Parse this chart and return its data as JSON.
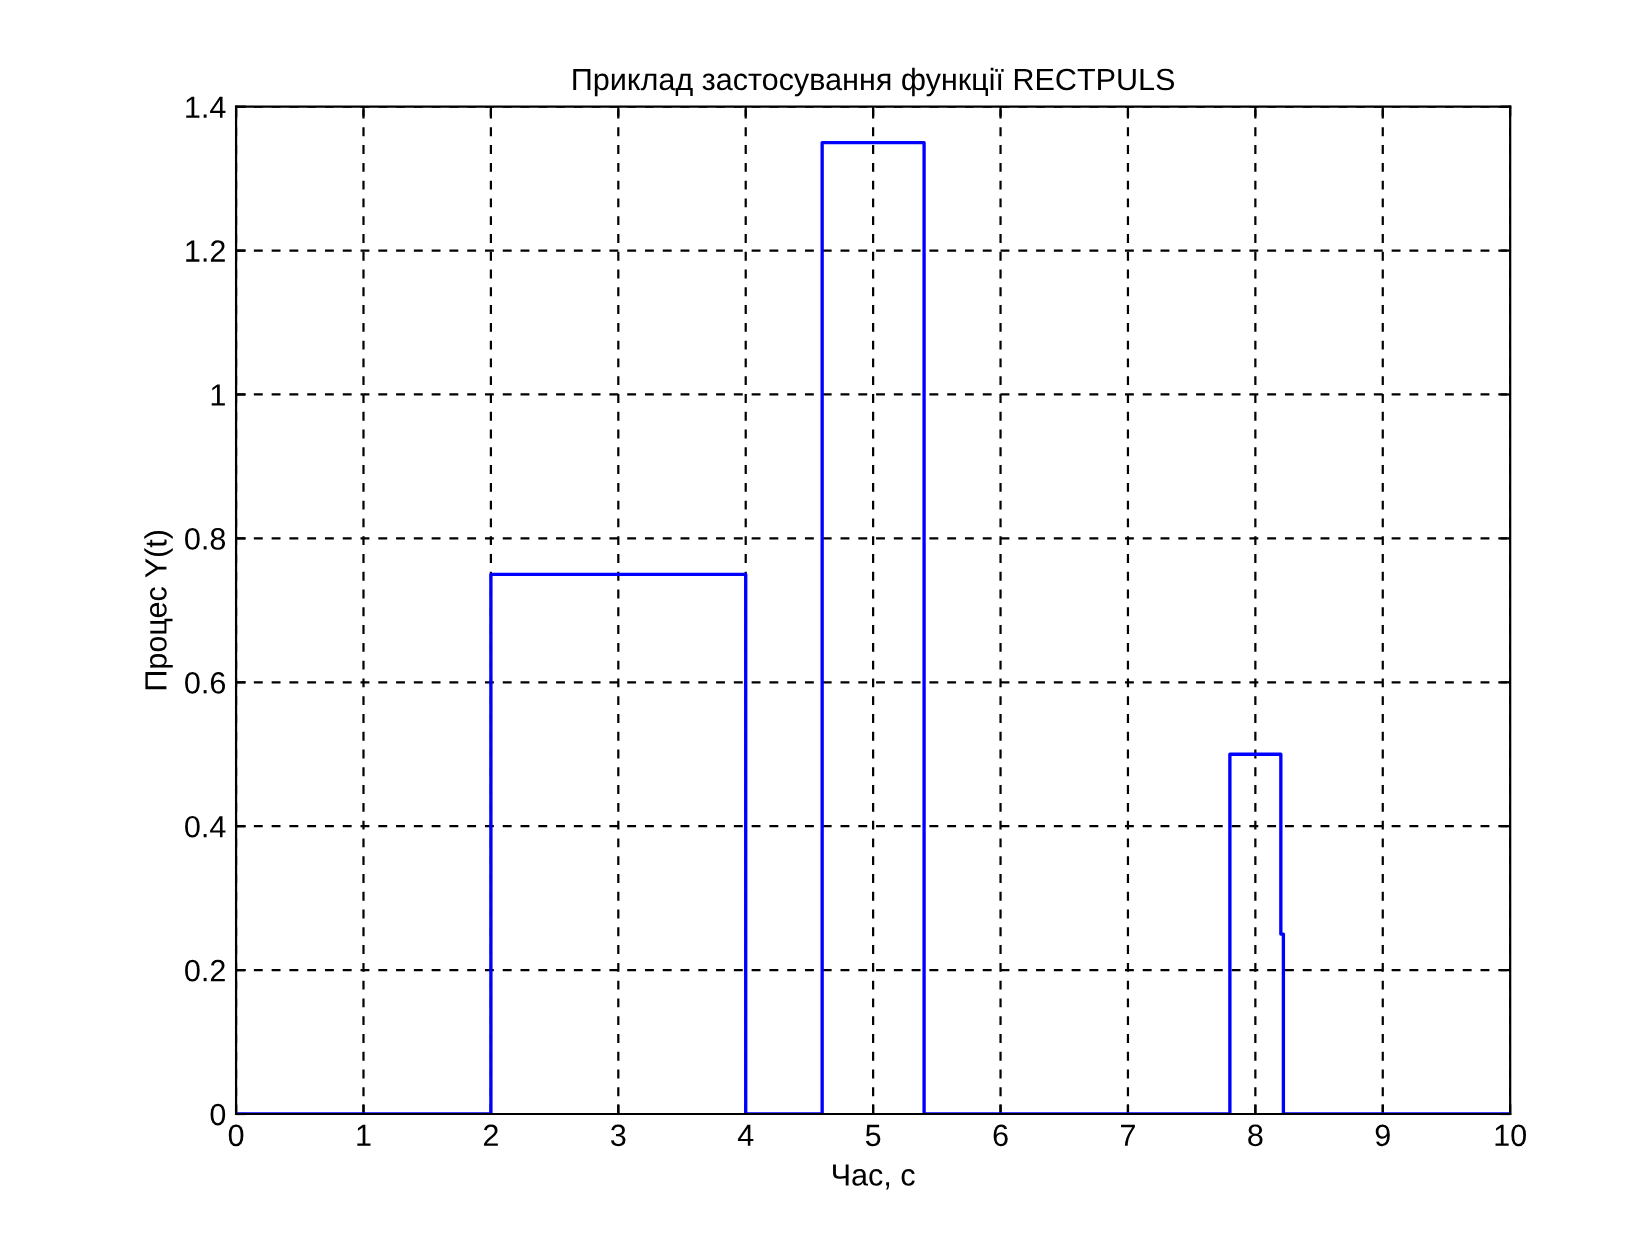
{
  "chart_data": {
    "type": "line",
    "title": "Приклад застосування функції RECTPULS",
    "xlabel": "Час, с",
    "ylabel": "Процес Y(t)",
    "series": [
      {
        "color": "#0000ff",
        "x": [
          0,
          2,
          2,
          4,
          4,
          4.6,
          4.6,
          5.4,
          5.4,
          7.8,
          7.8,
          8.2,
          8.2,
          8.22,
          8.22,
          10
        ],
        "values": [
          0,
          0,
          0.75,
          0.75,
          0,
          0,
          1.35,
          1.35,
          0,
          0,
          0.5,
          0.5,
          0.25,
          0.25,
          0,
          0
        ]
      }
    ],
    "xlim": [
      0,
      10
    ],
    "ylim": [
      0,
      1.4
    ],
    "xticks": [
      0,
      1,
      2,
      3,
      4,
      5,
      6,
      7,
      8,
      9,
      10
    ],
    "yticks": [
      0,
      0.2,
      0.4,
      0.6,
      0.8,
      1,
      1.2,
      1.4
    ],
    "grid": true,
    "line_style": "solid",
    "marker": "none"
  }
}
